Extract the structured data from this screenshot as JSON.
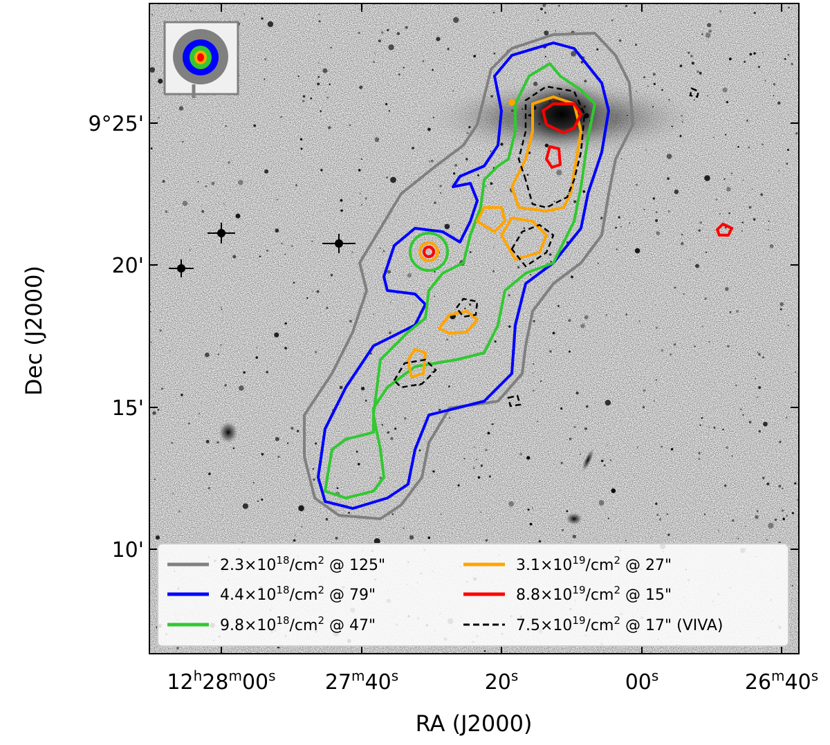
{
  "chart_data": {
    "type": "contour",
    "xlabel": "RA (J2000)",
    "ylabel": "Dec (J2000)",
    "x_ticks": [
      {
        "main": "12",
        "sup1": "h",
        "main2": "28",
        "sup2": "m",
        "main3": "00",
        "sup3": "s"
      },
      {
        "main": "27",
        "sup1": "m",
        "main2": "40",
        "sup2": "s"
      },
      {
        "main": "20",
        "sup1": "s"
      },
      {
        "main": "00",
        "sup1": "s"
      },
      {
        "main": "26",
        "sup1": "m",
        "main2": "40",
        "sup2": "s"
      }
    ],
    "y_ticks": [
      "9°25'",
      "20'",
      "15'",
      "10'"
    ],
    "y_tick_values_arcmin": [
      25,
      20,
      15,
      10
    ],
    "legend": {
      "placement": "bottom",
      "entries": [
        {
          "mant": "2.3×10",
          "exp": "18",
          "rest": "/cm",
          "sq": "2",
          "tail": " @ 125\"",
          "color": "#808080",
          "dashed": false
        },
        {
          "mant": "3.1×10",
          "exp": "19",
          "rest": "/cm",
          "sq": "2",
          "tail": " @ 27\"",
          "color": "#FFA500",
          "dashed": false
        },
        {
          "mant": "4.4×10",
          "exp": "18",
          "rest": "/cm",
          "sq": "2",
          "tail": " @ 79\"",
          "color": "#0000FF",
          "dashed": false
        },
        {
          "mant": "8.8×10",
          "exp": "19",
          "rest": "/cm",
          "sq": "2",
          "tail": " @ 15\"",
          "color": "#FF0000",
          "dashed": false
        },
        {
          "mant": "9.8×10",
          "exp": "18",
          "rest": "/cm",
          "sq": "2",
          "tail": " @ 47\"",
          "color": "#32C832",
          "dashed": false
        },
        {
          "mant": "7.5×10",
          "exp": "19",
          "rest": "/cm",
          "sq": "2",
          "tail": " @ 17\" (VIVA)",
          "color": "#000000",
          "dashed": true
        }
      ]
    },
    "beam_inset": {
      "placement": "top-left",
      "colors": [
        "#808080",
        "#0000FF",
        "#32C832",
        "#FFA500",
        "#FF0000"
      ]
    },
    "background": "grayscale optical image (inverted)"
  }
}
